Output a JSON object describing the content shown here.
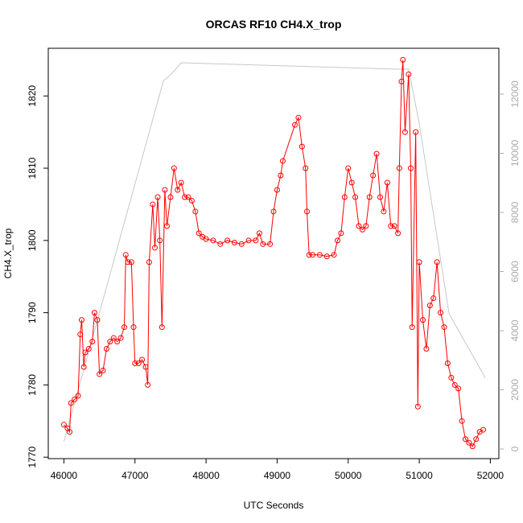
{
  "chart_data": {
    "type": "line",
    "title": "ORCAS RF10 CH4.X_trop",
    "x_label": "UTC Seconds",
    "y_label": "CH4.X_trop",
    "xlim": [
      45780,
      52120
    ],
    "xticks": [
      46000,
      47000,
      48000,
      49000,
      50000,
      51000,
      52000
    ],
    "ylim": [
      1769.8,
      1826.6
    ],
    "yticks": [
      1770,
      1780,
      1790,
      1800,
      1810,
      1820
    ],
    "y2lim": [
      -327,
      13551
    ],
    "y2ticks": [
      0,
      2000,
      4000,
      6000,
      8000,
      10000,
      12000
    ],
    "series": [
      {
        "color": "#ff0000",
        "markers": true,
        "x": [
          46000,
          46050,
          46080,
          46100,
          46150,
          46200,
          46230,
          46250,
          46280,
          46300,
          46350,
          46400,
          46430,
          46470,
          46500,
          46550,
          46600,
          46650,
          46700,
          46750,
          46800,
          46850,
          46870,
          46900,
          46950,
          46980,
          47000,
          47050,
          47100,
          47150,
          47180,
          47200,
          47250,
          47280,
          47320,
          47350,
          47380,
          47420,
          47450,
          47500,
          47550,
          47600,
          47650,
          47700,
          47750,
          47800,
          47850,
          47900,
          47950,
          48000,
          48100,
          48200,
          48300,
          48400,
          48500,
          48600,
          48700,
          48750,
          48800,
          48900,
          48950,
          49000,
          49050,
          49080,
          49250,
          49300,
          49350,
          49400,
          49420,
          49450,
          49500,
          49600,
          49700,
          49800,
          49850,
          49900,
          49950,
          50000,
          50050,
          50100,
          50150,
          50200,
          50250,
          50300,
          50350,
          50400,
          50450,
          50500,
          50550,
          50600,
          50650,
          50700,
          50720,
          50750,
          50770,
          50800,
          50850,
          50880,
          50900,
          50950,
          50980,
          51000,
          51050,
          51100,
          51150,
          51200,
          51250,
          51300,
          51350,
          51400,
          51450,
          51500,
          51550,
          51600,
          51650,
          51700,
          51750,
          51800,
          51850,
          51900
        ],
        "values": [
          1774.5,
          1774,
          1773.5,
          1777.5,
          1778,
          1778.5,
          1787,
          1789,
          1782.5,
          1784.5,
          1785,
          1786,
          1790,
          1789,
          1781.5,
          1782,
          1785,
          1786,
          1786.5,
          1786,
          1786.5,
          1788,
          1798,
          1797,
          1797,
          1788,
          1783,
          1783,
          1783.5,
          1782.5,
          1780,
          1797,
          1805,
          1799,
          1806,
          1800,
          1788,
          1807,
          1802,
          1806,
          1810,
          1807,
          1808,
          1806,
          1806,
          1805.5,
          1804,
          1801,
          1800.5,
          1800.2,
          1800,
          1799.5,
          1800,
          1799.7,
          1799.5,
          1800,
          1800,
          1801,
          1799.5,
          1799.5,
          1804,
          1807,
          1809,
          1811,
          1816,
          1817,
          1813,
          1810,
          1804,
          1798,
          1798,
          1798,
          1797.8,
          1798,
          1800,
          1801,
          1806,
          1810,
          1808,
          1806,
          1802,
          1801.5,
          1802,
          1806,
          1809,
          1812,
          1806,
          1804,
          1808,
          1802,
          1802,
          1801,
          1810,
          1822,
          1825,
          1815,
          1823,
          1810,
          1788,
          1815,
          1777,
          1797,
          1789,
          1785,
          1791,
          1792,
          1797,
          1790,
          1788,
          1783,
          1781,
          1780,
          1779.5,
          1775,
          1772.5,
          1772,
          1771.5,
          1772.5,
          1773.5,
          1773.8
        ]
      },
      {
        "color": "#c8c8c8",
        "axis": "y2",
        "markers": false,
        "x": [
          46000,
          47400,
          47500,
          47650,
          50750,
          50850,
          51000,
          51420,
          51930
        ],
        "values": [
          250,
          12450,
          12650,
          13060,
          12840,
          12850,
          11000,
          4570,
          2400
        ]
      }
    ]
  }
}
